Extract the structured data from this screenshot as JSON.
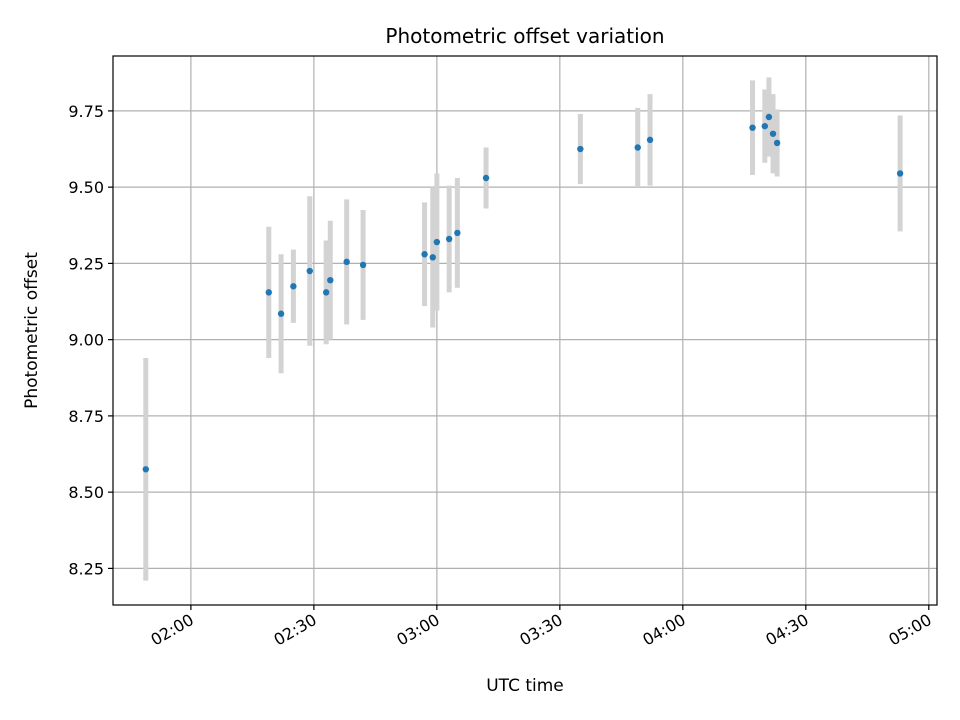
{
  "chart_data": {
    "type": "scatter",
    "title": "Photometric offset variation",
    "xlabel": "UTC time",
    "ylabel": "Photometric offset",
    "x_ticks": [
      "02:00",
      "02:30",
      "03:00",
      "03:30",
      "04:00",
      "04:30",
      "05:00"
    ],
    "y_ticks": [
      "8.25",
      "8.50",
      "8.75",
      "9.00",
      "9.25",
      "9.50",
      "9.75"
    ],
    "xlim": [
      "01:41",
      "05:02"
    ],
    "ylim": [
      8.13,
      9.93
    ],
    "grid": true,
    "colors": {
      "point": "#1f77b4",
      "errorbar": "#d3d3d3",
      "grid": "#b0b0b0"
    },
    "points": [
      {
        "x": "01:49",
        "y": 8.575,
        "err": 0.365
      },
      {
        "x": "02:19",
        "y": 9.155,
        "err": 0.215
      },
      {
        "x": "02:22",
        "y": 9.085,
        "err": 0.195
      },
      {
        "x": "02:25",
        "y": 9.175,
        "err": 0.12
      },
      {
        "x": "02:29",
        "y": 9.225,
        "err": 0.245
      },
      {
        "x": "02:33",
        "y": 9.155,
        "err": 0.17
      },
      {
        "x": "02:34",
        "y": 9.195,
        "err": 0.195
      },
      {
        "x": "02:38",
        "y": 9.255,
        "err": 0.205
      },
      {
        "x": "02:42",
        "y": 9.245,
        "err": 0.18
      },
      {
        "x": "02:57",
        "y": 9.28,
        "err": 0.17
      },
      {
        "x": "02:59",
        "y": 9.27,
        "err": 0.23
      },
      {
        "x": "03:00",
        "y": 9.32,
        "err": 0.225
      },
      {
        "x": "03:03",
        "y": 9.33,
        "err": 0.175
      },
      {
        "x": "03:05",
        "y": 9.35,
        "err": 0.18
      },
      {
        "x": "03:12",
        "y": 9.53,
        "err": 0.1
      },
      {
        "x": "03:35",
        "y": 9.625,
        "err": 0.115
      },
      {
        "x": "03:49",
        "y": 9.63,
        "err": 0.13
      },
      {
        "x": "03:52",
        "y": 9.655,
        "err": 0.15
      },
      {
        "x": "04:17",
        "y": 9.695,
        "err": 0.155
      },
      {
        "x": "04:20",
        "y": 9.7,
        "err": 0.12
      },
      {
        "x": "04:21",
        "y": 9.73,
        "err": 0.13
      },
      {
        "x": "04:22",
        "y": 9.675,
        "err": 0.13
      },
      {
        "x": "04:23",
        "y": 9.645,
        "err": 0.11
      },
      {
        "x": "04:53",
        "y": 9.545,
        "err": 0.19
      }
    ]
  }
}
